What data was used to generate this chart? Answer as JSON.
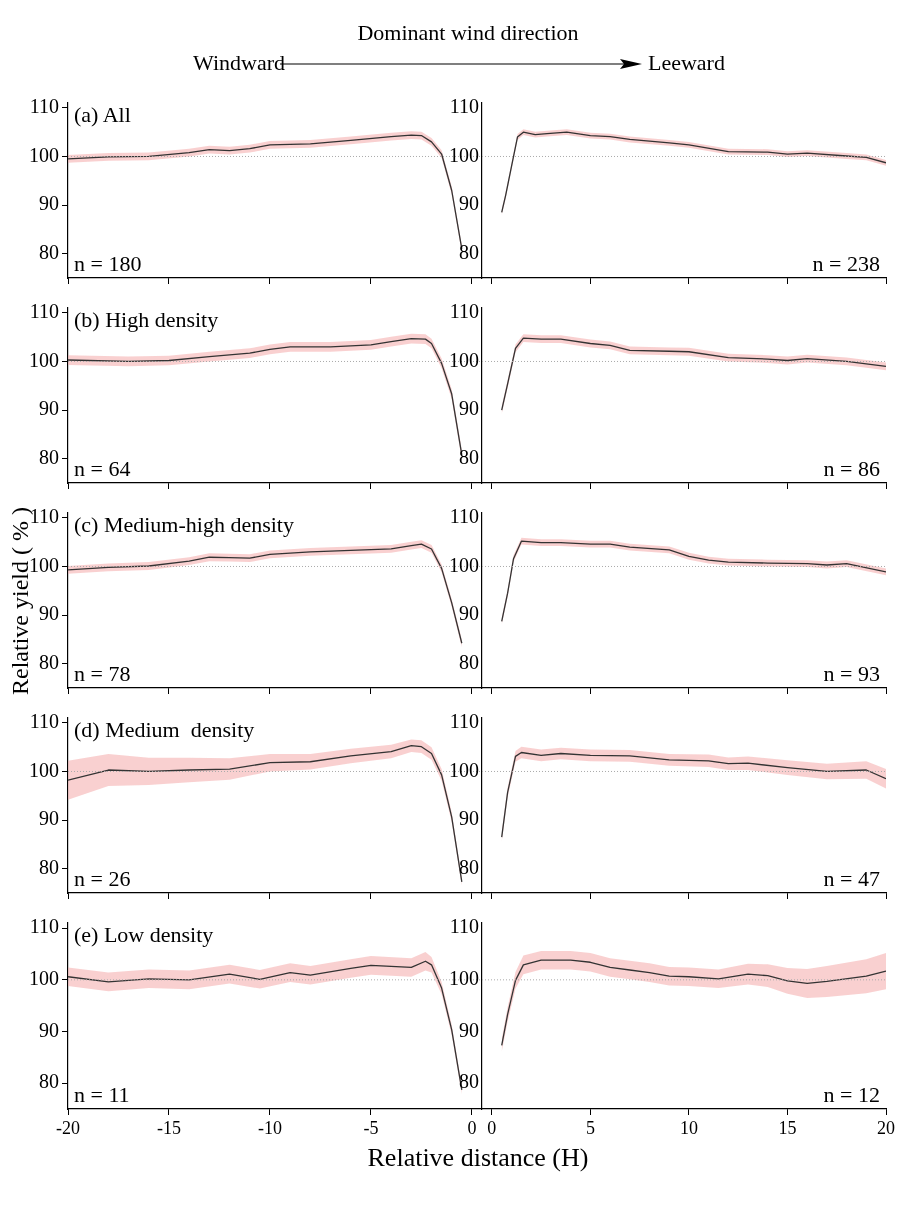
{
  "chart_data": [
    {
      "type": "line",
      "title": "(a) All",
      "annotations": [
        "n = 180",
        "Windward",
        "Dominant wind direction",
        "Leeward"
      ],
      "xlim": [
        -20,
        0.5
      ],
      "xticks": [
        -20,
        -15,
        -10,
        -5,
        0
      ],
      "ylim": [
        75,
        111
      ],
      "yticks": [
        80,
        90,
        100,
        110
      ],
      "tick_labels": "y",
      "ref_lines": [
        {
          "axis": "y",
          "value": 100,
          "color": "#aaaaaa",
          "line_style": "dotted"
        }
      ],
      "series": [
        {
          "color": "#333333",
          "x": [
            -20,
            -18,
            -16,
            -14,
            -13,
            -12,
            -11,
            -10,
            -8,
            -6,
            -4,
            -3,
            -2.5,
            -2,
            -1.5,
            -1,
            -0.5
          ],
          "values": [
            99.5,
            99.9,
            100,
            100.8,
            101.4,
            101.2,
            101.6,
            102.4,
            102.6,
            103.3,
            104.1,
            104.4,
            104.3,
            103,
            100.5,
            93,
            81
          ],
          "lower": [
            98.7,
            99.1,
            99.2,
            100,
            100.6,
            100.4,
            100.8,
            101.6,
            101.8,
            102.5,
            103.3,
            103.6,
            103.5,
            102.2,
            99.7,
            92.2,
            80.2
          ],
          "upper": [
            100.3,
            100.7,
            100.8,
            101.6,
            102.2,
            102,
            102.4,
            103.2,
            103.4,
            104.1,
            104.9,
            105.2,
            105.1,
            103.8,
            101.3,
            93.8,
            81.8
          ]
        }
      ]
    },
    {
      "type": "line",
      "annotations": [
        "n = 238"
      ],
      "xlim": [
        -0.5,
        20
      ],
      "xticks": [
        0,
        5,
        10,
        15,
        20
      ],
      "ylim": [
        75,
        111
      ],
      "yticks": [
        80,
        90,
        100,
        110
      ],
      "tick_labels": "y",
      "ref_lines": [
        {
          "axis": "y",
          "value": 100,
          "color": "#aaaaaa",
          "line_style": "dotted"
        }
      ],
      "series": [
        {
          "color": "#333333",
          "x": [
            0.5,
            0.7,
            1,
            1.3,
            1.6,
            2.2,
            2.8,
            3.8,
            5,
            6,
            7,
            9,
            10,
            12,
            14,
            15,
            16,
            18,
            19,
            20
          ],
          "values": [
            88.5,
            92,
            98,
            104,
            105,
            104.5,
            104.7,
            105,
            104.3,
            104.1,
            103.5,
            102.8,
            102.4,
            101,
            100.9,
            100.5,
            100.7,
            100.1,
            99.8,
            98.7
          ],
          "lower": [
            87.9,
            91.4,
            97.4,
            103.4,
            104.4,
            103.9,
            104.1,
            104.4,
            103.7,
            103.5,
            102.9,
            102.2,
            101.8,
            100.4,
            100.3,
            99.9,
            100.1,
            99.5,
            99.2,
            98.1
          ],
          "upper": [
            89.1,
            92.6,
            98.6,
            104.6,
            105.6,
            105.1,
            105.3,
            105.6,
            104.9,
            104.7,
            104.1,
            103.4,
            103,
            101.6,
            101.5,
            101.1,
            101.3,
            100.7,
            100.4,
            99.3
          ]
        }
      ]
    },
    {
      "type": "line",
      "title": "(b) High density",
      "annotations": [
        "n = 64"
      ],
      "xlim": [
        -20,
        0.5
      ],
      "xticks": [
        -20,
        -15,
        -10,
        -5,
        0
      ],
      "ylim": [
        75,
        111
      ],
      "yticks": [
        80,
        90,
        100,
        110
      ],
      "tick_labels": "y",
      "ref_lines": [
        {
          "axis": "y",
          "value": 100,
          "color": "#aaaaaa",
          "line_style": "dotted"
        }
      ],
      "series": [
        {
          "color": "#333333",
          "x": [
            -20,
            -17,
            -15,
            -13,
            -11,
            -10,
            -9,
            -7,
            -5,
            -4,
            -3,
            -2.3,
            -2,
            -1.5,
            -1,
            -0.5
          ],
          "values": [
            100.3,
            100,
            100.2,
            101,
            101.7,
            102.5,
            103,
            103,
            103.4,
            104.1,
            104.7,
            104.6,
            103.7,
            99.6,
            93.3,
            80.8
          ],
          "lower": [
            99.3,
            99,
            99.2,
            100,
            100.7,
            101.5,
            102,
            102,
            102.4,
            103.1,
            103.7,
            103.6,
            102.7,
            98.6,
            92.3,
            79.8
          ],
          "upper": [
            101.3,
            101,
            101.2,
            102,
            102.7,
            103.5,
            104,
            104,
            104.4,
            105.1,
            105.7,
            105.6,
            104.7,
            100.6,
            94.3,
            81.8
          ]
        }
      ]
    },
    {
      "type": "line",
      "annotations": [
        "n = 86"
      ],
      "xlim": [
        -0.5,
        20
      ],
      "xticks": [
        0,
        5,
        10,
        15,
        20
      ],
      "ylim": [
        75,
        111
      ],
      "yticks": [
        80,
        90,
        100,
        110
      ],
      "tick_labels": "y",
      "ref_lines": [
        {
          "axis": "y",
          "value": 100,
          "color": "#aaaaaa",
          "line_style": "dotted"
        }
      ],
      "series": [
        {
          "color": "#333333",
          "x": [
            0.5,
            0.8,
            1.2,
            1.6,
            2.5,
            3.5,
            5,
            6,
            7,
            9,
            10,
            12,
            14,
            15,
            16,
            18,
            20
          ],
          "values": [
            90,
            95.4,
            102.7,
            104.8,
            104.6,
            104.6,
            103.7,
            103.3,
            102.3,
            102.1,
            102,
            100.8,
            100.5,
            100.2,
            100.6,
            100,
            99
          ],
          "lower": [
            89.2,
            94.6,
            101.9,
            104,
            103.8,
            103.8,
            102.9,
            102.5,
            101.5,
            101.3,
            101.2,
            100,
            99.7,
            99.4,
            99.8,
            99.2,
            98.2
          ],
          "upper": [
            90.8,
            96.2,
            103.5,
            105.6,
            105.4,
            105.4,
            104.5,
            104.1,
            103.1,
            102.9,
            102.8,
            101.6,
            101.3,
            101,
            101.4,
            100.8,
            99.8
          ]
        }
      ]
    },
    {
      "type": "line",
      "title": "(c) Medium-high density",
      "ylabel": "Relative yield ( % )",
      "annotations": [
        "n = 78"
      ],
      "xlim": [
        -20,
        0.5
      ],
      "xticks": [
        -20,
        -15,
        -10,
        -5,
        0
      ],
      "ylim": [
        75,
        111
      ],
      "yticks": [
        80,
        90,
        100,
        110
      ],
      "tick_labels": "y",
      "ref_lines": [
        {
          "axis": "y",
          "value": 100,
          "color": "#aaaaaa",
          "line_style": "dotted"
        }
      ],
      "series": [
        {
          "color": "#333333",
          "x": [
            -20,
            -18,
            -16,
            -14,
            -13,
            -12,
            -11,
            -10,
            -8,
            -6,
            -4,
            -3,
            -2.5,
            -2,
            -1.5,
            -1,
            -0.5
          ],
          "values": [
            99.3,
            99.8,
            100.1,
            101.1,
            101.9,
            101.8,
            101.7,
            102.5,
            103,
            103.3,
            103.6,
            104.3,
            104.6,
            103.6,
            99.6,
            92.5,
            84.2
          ],
          "lower": [
            98.5,
            99,
            99.3,
            100.3,
            101.1,
            101,
            100.9,
            101.7,
            102.2,
            102.5,
            102.8,
            103.5,
            103.8,
            102.8,
            98.8,
            91.7,
            83.4
          ],
          "upper": [
            100.1,
            100.6,
            100.9,
            101.9,
            102.7,
            102.6,
            102.5,
            103.3,
            103.8,
            104.1,
            104.4,
            105.1,
            105.4,
            104.4,
            100.4,
            93.3,
            85
          ]
        }
      ]
    },
    {
      "type": "line",
      "annotations": [
        "n = 93"
      ],
      "xlim": [
        -0.5,
        20
      ],
      "xticks": [
        0,
        5,
        10,
        15,
        20
      ],
      "ylim": [
        75,
        111
      ],
      "yticks": [
        80,
        90,
        100,
        110
      ],
      "tick_labels": "y",
      "ref_lines": [
        {
          "axis": "y",
          "value": 100,
          "color": "#aaaaaa",
          "line_style": "dotted"
        }
      ],
      "series": [
        {
          "color": "#333333",
          "x": [
            0.5,
            0.8,
            1.1,
            1.5,
            2.5,
            3.5,
            5,
            6,
            7,
            9,
            10,
            11,
            12,
            14,
            16,
            17,
            18,
            20
          ],
          "values": [
            88.7,
            94.5,
            101.6,
            105.2,
            104.9,
            104.9,
            104.6,
            104.6,
            104,
            103.4,
            102.1,
            101.3,
            100.9,
            100.7,
            100.6,
            100.3,
            100.6,
            98.9
          ],
          "lower": [
            88,
            93.8,
            100.9,
            104.5,
            104.2,
            104.2,
            103.9,
            103.9,
            103.3,
            102.7,
            101.4,
            100.6,
            100.2,
            100,
            99.9,
            99.6,
            99.9,
            98.2
          ],
          "upper": [
            89.4,
            95.2,
            102.3,
            105.9,
            105.6,
            105.6,
            105.3,
            105.3,
            104.7,
            104.1,
            102.8,
            102,
            101.6,
            101.4,
            101.3,
            101,
            101.3,
            99.6
          ]
        }
      ]
    },
    {
      "type": "line",
      "title": "(d) Medium  density",
      "annotations": [
        "n = 26"
      ],
      "xlim": [
        -20,
        0.5
      ],
      "xticks": [
        -20,
        -15,
        -10,
        -5,
        0
      ],
      "ylim": [
        75,
        111
      ],
      "yticks": [
        80,
        90,
        100,
        110
      ],
      "tick_labels": "y",
      "ref_lines": [
        {
          "axis": "y",
          "value": 100,
          "color": "#aaaaaa",
          "line_style": "dotted"
        }
      ],
      "series": [
        {
          "color": "#333333",
          "x": [
            -20,
            -18,
            -16,
            -14,
            -12,
            -10,
            -8,
            -6,
            -4,
            -3,
            -2.5,
            -2,
            -1.5,
            -1,
            -0.5
          ],
          "values": [
            98.2,
            100.3,
            100,
            100.3,
            100.5,
            101.8,
            102,
            103.2,
            104.1,
            105.3,
            105.1,
            103.7,
            99.3,
            90.6,
            77.3
          ],
          "lower": [
            94.2,
            97,
            97.2,
            97.8,
            98.3,
            100,
            100.4,
            101.7,
            102.7,
            104,
            103.8,
            102.4,
            98.1,
            89.6,
            76.5
          ],
          "upper": [
            102.2,
            103.6,
            102.8,
            102.8,
            102.7,
            103.6,
            103.6,
            104.7,
            105.5,
            106.6,
            106.4,
            105,
            100.5,
            91.6,
            78.1
          ]
        }
      ]
    },
    {
      "type": "line",
      "annotations": [
        "n = 47"
      ],
      "xlim": [
        -0.5,
        20
      ],
      "xticks": [
        0,
        5,
        10,
        15,
        20
      ],
      "ylim": [
        75,
        111
      ],
      "yticks": [
        80,
        90,
        100,
        110
      ],
      "tick_labels": "y",
      "ref_lines": [
        {
          "axis": "y",
          "value": 100,
          "color": "#aaaaaa",
          "line_style": "dotted"
        }
      ],
      "series": [
        {
          "color": "#333333",
          "x": [
            0.5,
            0.8,
            1.2,
            1.5,
            2.5,
            3.5,
            5,
            7,
            9,
            11,
            12,
            13,
            15,
            17,
            19,
            20
          ],
          "values": [
            86.5,
            95.7,
            103.1,
            103.9,
            103.3,
            103.7,
            103.3,
            103.2,
            102.4,
            102.2,
            101.6,
            101.7,
            100.8,
            100,
            100.3,
            98.5
          ],
          "lower": [
            85.5,
            94.7,
            102,
            102.7,
            102.1,
            102.5,
            102.1,
            102,
            101.2,
            100.9,
            100.3,
            100.3,
            99.3,
            98.4,
            98.5,
            96.5
          ],
          "upper": [
            87.5,
            96.7,
            104.2,
            105.1,
            104.5,
            104.9,
            104.5,
            104.4,
            103.6,
            103.5,
            102.9,
            103.1,
            102.3,
            101.6,
            102.1,
            100.5
          ]
        }
      ]
    },
    {
      "type": "line",
      "title": "(e) Low density",
      "xlabel": "Relative distance (H)",
      "annotations": [
        "n = 11"
      ],
      "xlim": [
        -20,
        0.5
      ],
      "xticks": [
        -20,
        -15,
        -10,
        -5,
        0
      ],
      "ylim": [
        75,
        111
      ],
      "yticks": [
        80,
        90,
        100,
        110
      ],
      "ref_lines": [
        {
          "axis": "y",
          "value": 100,
          "color": "#aaaaaa",
          "line_style": "dotted"
        }
      ],
      "series": [
        {
          "color": "#333333",
          "x": [
            -20,
            -18,
            -16,
            -14,
            -12,
            -10.5,
            -9,
            -8,
            -6,
            -5,
            -3,
            -2.3,
            -2,
            -1.5,
            -1,
            -0.5
          ],
          "values": [
            100.6,
            99.6,
            100.2,
            100,
            101.1,
            100.1,
            101.4,
            100.9,
            102.2,
            102.8,
            102.4,
            103.6,
            102.9,
            98.4,
            90.3,
            78.7
          ],
          "lower": [
            98.8,
            97.8,
            98.4,
            98.2,
            99.3,
            98.3,
            99.6,
            99.1,
            100.4,
            101,
            100.6,
            101.8,
            101.4,
            97.2,
            89.3,
            77.9
          ],
          "upper": [
            102.4,
            101.4,
            102,
            101.8,
            102.9,
            101.9,
            103.2,
            102.7,
            104,
            104.6,
            104.2,
            105.4,
            104.4,
            99.6,
            91.3,
            79.5
          ]
        }
      ]
    },
    {
      "type": "line",
      "annotations": [
        "n = 12"
      ],
      "xlim": [
        -0.5,
        20
      ],
      "xticks": [
        0,
        5,
        10,
        15,
        20
      ],
      "ylim": [
        75,
        111
      ],
      "yticks": [
        80,
        90,
        100,
        110
      ],
      "ref_lines": [
        {
          "axis": "y",
          "value": 100,
          "color": "#aaaaaa",
          "line_style": "dotted"
        }
      ],
      "series": [
        {
          "color": "#333333",
          "x": [
            0.5,
            0.8,
            1.2,
            1.6,
            2.5,
            4,
            5,
            6,
            7,
            8,
            9,
            10,
            11.5,
            13,
            14,
            15,
            16,
            17,
            19,
            20
          ],
          "values": [
            87.3,
            93.3,
            99.9,
            102.9,
            103.8,
            103.8,
            103.4,
            102.4,
            101.9,
            101.4,
            100.7,
            100.6,
            100.2,
            101.1,
            100.8,
            99.8,
            99.3,
            99.7,
            100.7,
            101.7
          ],
          "lower": [
            86.1,
            91.9,
            98.3,
            101.1,
            102,
            102,
            101.6,
            100.6,
            100.1,
            99.6,
            98.9,
            98.8,
            98.4,
            99.1,
            98.6,
            97.3,
            96.5,
            96.7,
            97.4,
            98.2
          ],
          "upper": [
            88.5,
            94.7,
            101.5,
            104.7,
            105.6,
            105.6,
            105.2,
            104.2,
            103.7,
            103.2,
            102.5,
            102.4,
            102,
            103.1,
            103,
            102.3,
            102.1,
            102.7,
            104,
            105.2
          ]
        }
      ]
    }
  ]
}
